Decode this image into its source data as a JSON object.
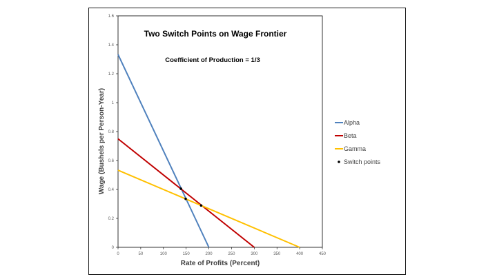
{
  "chart_data": {
    "type": "line",
    "title": "Two Switch Points on Wage Frontier",
    "subtitle": "Coefficient of Production = 1/3",
    "xlabel": "Rate of Profits (Percent)",
    "ylabel": "Wage (Bushels per Person-Year)",
    "xlim": [
      0,
      450
    ],
    "ylim": [
      0,
      1.6
    ],
    "x_ticks": [
      0,
      50,
      100,
      150,
      200,
      250,
      300,
      350,
      400,
      450
    ],
    "y_ticks": [
      0,
      0.2,
      0.4,
      0.6,
      0.8,
      1,
      1.2,
      1.4,
      1.6
    ],
    "x_tick_labels": [
      "0",
      "50",
      "100",
      "150",
      "200",
      "250",
      "300",
      "350",
      "400",
      "450"
    ],
    "y_tick_labels": [
      "0",
      "0.2",
      "0.4",
      "0.6",
      "0.8",
      "1",
      "1.2",
      "1.4",
      "1.6"
    ],
    "grid": false,
    "legend_position": "right",
    "series": [
      {
        "name": "Alpha",
        "color": "#4f81bd",
        "x": [
          0,
          200
        ],
        "y": [
          1.333,
          0
        ]
      },
      {
        "name": "Beta",
        "color": "#c00000",
        "x": [
          0,
          300
        ],
        "y": [
          0.75,
          0
        ]
      },
      {
        "name": "Gamma",
        "color": "#ffc000",
        "x": [
          0,
          400
        ],
        "y": [
          0.533,
          0
        ]
      }
    ],
    "switch_points": {
      "name": "Switch points",
      "color": "#000000",
      "points": [
        {
          "x": 138.5,
          "y": 0.405
        },
        {
          "x": 149,
          "y": 0.335
        },
        {
          "x": 183,
          "y": 0.289
        }
      ]
    }
  }
}
